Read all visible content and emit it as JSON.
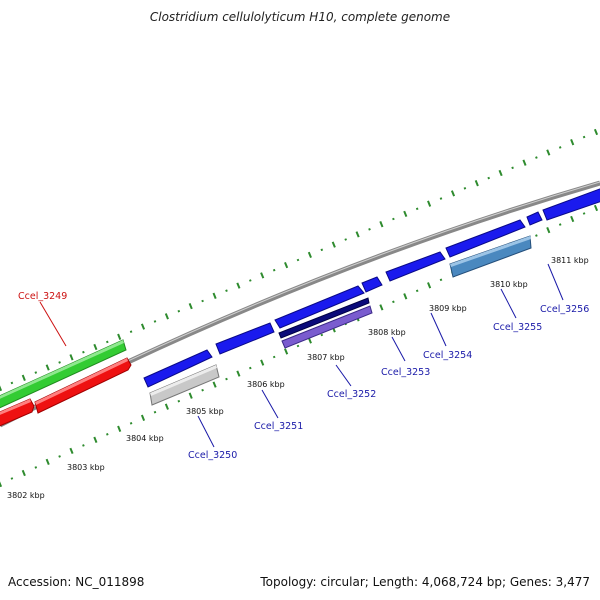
{
  "title": "Clostridium cellulolyticum H10, complete genome",
  "footer": {
    "accession": "Accession: NC_011898",
    "summary": "Topology: circular; Length: 4,068,724 bp; Genes: 3,477"
  },
  "colors": {
    "dots": "#2e8b2e",
    "backbone": "#888888",
    "forward_gene": "#1a1aee",
    "reverse_gene": "#ee1111",
    "forward_other": "#33cc33",
    "label_blue": "#1a1aa8",
    "label_red": "#cc1111"
  },
  "ticks": [
    {
      "label": "3802 kbp"
    },
    {
      "label": "3803 kbp"
    },
    {
      "label": "3804 kbp"
    },
    {
      "label": "3805 kbp"
    },
    {
      "label": "3806 kbp"
    },
    {
      "label": "3807 kbp"
    },
    {
      "label": "3808 kbp"
    },
    {
      "label": "3809 kbp"
    },
    {
      "label": "3810 kbp"
    },
    {
      "label": "3811 kbp"
    }
  ],
  "gene_labels": [
    {
      "name": "Ccel_3249",
      "color": "#cc1111"
    },
    {
      "name": "Ccel_3250",
      "color": "#1a1aa8"
    },
    {
      "name": "Ccel_3251",
      "color": "#1a1aa8"
    },
    {
      "name": "Ccel_3252",
      "color": "#1a1aa8"
    },
    {
      "name": "Ccel_3253",
      "color": "#1a1aa8"
    },
    {
      "name": "Ccel_3254",
      "color": "#1a1aa8"
    },
    {
      "name": "Ccel_3255",
      "color": "#1a1aa8"
    },
    {
      "name": "Ccel_3256",
      "color": "#1a1aa8"
    }
  ]
}
